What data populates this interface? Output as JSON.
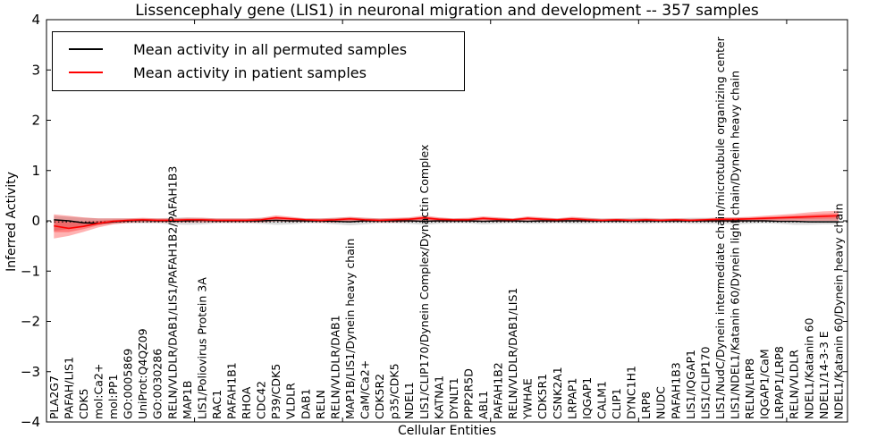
{
  "title": "Lissencephaly gene (LIS1) in neuronal migration and development -- 357 samples",
  "legend": [
    {
      "label": "Mean activity in all permuted samples",
      "color": "#000000"
    },
    {
      "label": "Mean activity in patient samples",
      "color": "#ff0000"
    }
  ],
  "axes": {
    "ylabel": "Inferred Activity",
    "xlabel": "Cellular Entities",
    "ylim": [
      -4,
      4
    ],
    "yticks": [
      4,
      3,
      2,
      1,
      0,
      -1,
      -2,
      -3,
      -4
    ],
    "yticklabels": [
      "4",
      "3",
      "2",
      "1",
      "0",
      "−1",
      "−2",
      "−3",
      "−4"
    ]
  },
  "chart_data": {
    "type": "line",
    "title": "Lissencephaly gene (LIS1) in neuronal migration and development -- 357 samples",
    "xlabel": "Cellular Entities",
    "ylabel": "Inferred Activity",
    "ylim": [
      -4,
      4
    ],
    "xticks": [
      10,
      20,
      30,
      40,
      50
    ],
    "grid": false,
    "legend_position": "upper left",
    "zero_reference_line": {
      "y": 0,
      "style": "dotted",
      "color": "#000000"
    },
    "categories": [
      "PLA2G7",
      "PAFAH/LIS1",
      "CDK5",
      "mol:Ca2+",
      "mol:PP1",
      "GO:0005869",
      "UniProt:Q4QZ09",
      "GO:0030286",
      "RELN/VLDLR/DAB1/LIS1/PAFAH1B2/PAFAH1B3",
      "MAP1B",
      "LIS1/Poliovirus Protein 3A",
      "RAC1",
      "PAFAH1B1",
      "RHOA",
      "CDC42",
      "P39/CDK5",
      "VLDLR",
      "DAB1",
      "RELN",
      "RELN/VLDLR/DAB1",
      "MAP1B/LIS1/Dynein heavy chain",
      "CaM/Ca2+",
      "CDK5R2",
      "p35/CDK5",
      "NDEL1",
      "LIS1/CLIP170/Dynein Complex/Dynactin Complex",
      "KATNA1",
      "DYNLT1",
      "PPP2R5D",
      "ABL1",
      "PAFAH1B2",
      "RELN/VLDLR/DAB1/LIS1",
      "YWHAE",
      "CDK5R1",
      "CSNK2A1",
      "LRPAP1",
      "IQGAP1",
      "CALM1",
      "CLIP1",
      "DYNC1H1",
      "LRP8",
      "NUDC",
      "PAFAH1B3",
      "LIS1/IQGAP1",
      "LIS1/CLIP170",
      "LIS1/NudC/Dynein intermediate chain/microtubule organizing center",
      "LIS1/NDEL1/Katanin 60/Dynein light chain/Dynein heavy chain",
      "RELN/LRP8",
      "IQGAP1/CaM",
      "LRPAP1/LRP8",
      "RELN/VLDLR",
      "NDEL1/Katanin 60",
      "NDEL1/14-3-3 E",
      "NDEL1/Katanin 60/Dynein heavy chain"
    ],
    "series": [
      {
        "name": "Mean activity in all permuted samples",
        "color": "#000000",
        "band_color": "#999999",
        "values": [
          0.02,
          0.0,
          -0.04,
          -0.05,
          -0.02,
          0.0,
          0.01,
          0.0,
          0.0,
          0.0,
          0.01,
          0.0,
          0.0,
          0.0,
          0.0,
          0.01,
          0.0,
          0.0,
          0.0,
          -0.01,
          -0.02,
          0.0,
          0.0,
          0.0,
          0.0,
          -0.01,
          0.0,
          0.0,
          0.0,
          -0.01,
          0.0,
          0.0,
          -0.01,
          0.0,
          0.0,
          0.0,
          0.0,
          0.0,
          0.0,
          0.0,
          0.0,
          0.0,
          0.0,
          0.0,
          0.0,
          0.0,
          0.0,
          0.0,
          0.0,
          -0.01,
          -0.01,
          -0.02,
          -0.02,
          -0.02
        ],
        "band_upper": [
          0.1,
          0.08,
          0.06,
          0.05,
          0.05,
          0.05,
          0.05,
          0.05,
          0.06,
          0.07,
          0.06,
          0.05,
          0.05,
          0.05,
          0.06,
          0.07,
          0.06,
          0.05,
          0.05,
          0.06,
          0.07,
          0.06,
          0.05,
          0.05,
          0.06,
          0.07,
          0.06,
          0.05,
          0.05,
          0.06,
          0.06,
          0.05,
          0.06,
          0.06,
          0.05,
          0.06,
          0.06,
          0.05,
          0.05,
          0.06,
          0.06,
          0.05,
          0.05,
          0.06,
          0.06,
          0.06,
          0.07,
          0.06,
          0.05,
          0.06,
          0.07,
          0.07,
          0.06,
          0.06
        ],
        "band_lower": [
          -0.2,
          -0.16,
          -0.12,
          -0.08,
          -0.06,
          -0.05,
          -0.05,
          -0.05,
          -0.07,
          -0.08,
          -0.07,
          -0.05,
          -0.05,
          -0.05,
          -0.06,
          -0.08,
          -0.07,
          -0.05,
          -0.05,
          -0.07,
          -0.09,
          -0.07,
          -0.05,
          -0.05,
          -0.06,
          -0.08,
          -0.06,
          -0.05,
          -0.05,
          -0.07,
          -0.06,
          -0.05,
          -0.06,
          -0.06,
          -0.05,
          -0.06,
          -0.06,
          -0.05,
          -0.05,
          -0.06,
          -0.06,
          -0.05,
          -0.05,
          -0.06,
          -0.06,
          -0.06,
          -0.07,
          -0.06,
          -0.05,
          -0.06,
          -0.08,
          -0.08,
          -0.07,
          -0.07
        ]
      },
      {
        "name": "Mean activity in patient samples",
        "color": "#ff0000",
        "band_color": "#ff0000",
        "values": [
          -0.1,
          -0.15,
          -0.11,
          -0.05,
          -0.01,
          0.01,
          0.02,
          0.01,
          0.01,
          0.02,
          0.02,
          0.01,
          0.01,
          0.01,
          0.02,
          0.06,
          0.04,
          0.02,
          0.01,
          0.02,
          0.04,
          0.02,
          0.01,
          0.02,
          0.03,
          0.06,
          0.03,
          0.02,
          0.02,
          0.05,
          0.03,
          0.02,
          0.05,
          0.03,
          0.02,
          0.04,
          0.02,
          0.01,
          0.02,
          0.01,
          0.02,
          0.01,
          0.02,
          0.01,
          0.02,
          0.03,
          0.03,
          0.04,
          0.05,
          0.06,
          0.07,
          0.08,
          0.09,
          0.1
        ],
        "band_upper": [
          0.13,
          0.1,
          0.07,
          0.05,
          0.05,
          0.05,
          0.06,
          0.05,
          0.05,
          0.06,
          0.06,
          0.05,
          0.05,
          0.05,
          0.06,
          0.11,
          0.08,
          0.05,
          0.05,
          0.06,
          0.08,
          0.06,
          0.05,
          0.06,
          0.07,
          0.11,
          0.07,
          0.05,
          0.06,
          0.09,
          0.07,
          0.05,
          0.09,
          0.07,
          0.05,
          0.08,
          0.06,
          0.04,
          0.05,
          0.04,
          0.05,
          0.04,
          0.05,
          0.04,
          0.05,
          0.07,
          0.07,
          0.08,
          0.1,
          0.12,
          0.14,
          0.17,
          0.19,
          0.2
        ],
        "band_lower": [
          -0.35,
          -0.3,
          -0.22,
          -0.13,
          -0.07,
          -0.04,
          -0.03,
          -0.03,
          -0.03,
          -0.03,
          -0.03,
          -0.03,
          -0.03,
          -0.03,
          -0.03,
          -0.01,
          -0.02,
          -0.02,
          -0.03,
          -0.03,
          -0.02,
          -0.02,
          -0.03,
          -0.03,
          -0.02,
          -0.01,
          -0.02,
          -0.02,
          -0.02,
          -0.01,
          -0.02,
          -0.02,
          -0.01,
          -0.02,
          -0.02,
          -0.01,
          -0.02,
          -0.02,
          -0.02,
          -0.02,
          -0.02,
          -0.02,
          -0.02,
          -0.02,
          -0.02,
          -0.02,
          -0.02,
          -0.01,
          -0.01,
          0.0,
          0.0,
          0.0,
          0.0,
          0.0
        ]
      }
    ]
  }
}
